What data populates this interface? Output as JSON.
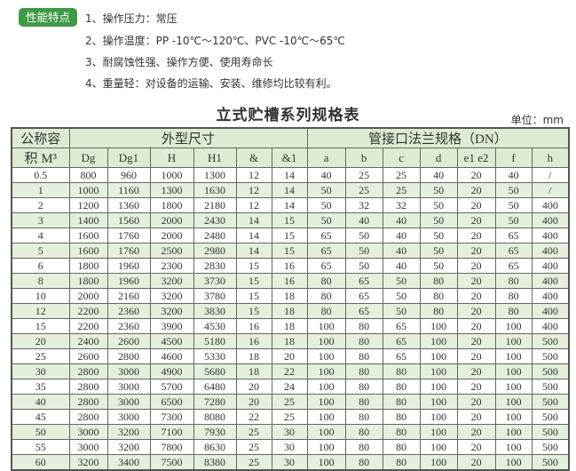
{
  "badge": "性能特点",
  "features": [
    "1、操作压力：常压",
    "2、操作温度：PP -10℃～120℃、PVC -10℃～65℃",
    "3、耐腐蚀性强、操作方便、使用寿命长",
    "4、重量轻：对设备的运输、安装、维修均比较有利。"
  ],
  "title": "立式贮槽系列规格表",
  "unit": "单位：mm",
  "table": {
    "col0_top": "公称容",
    "col0_bottom": "积 M³",
    "group1": "外型尺寸",
    "group2": "管接口法兰规格（DN）",
    "headers": [
      "Dg",
      "Dg1",
      "H",
      "H1",
      "&",
      "&1",
      "a",
      "b",
      "c",
      "d",
      "e1 e2",
      "f",
      "h"
    ],
    "rows": [
      [
        "0.5",
        "800",
        "960",
        "1000",
        "1300",
        "12",
        "14",
        "40",
        "25",
        "25",
        "40",
        "20",
        "40",
        "/"
      ],
      [
        "1",
        "1000",
        "1160",
        "1300",
        "1630",
        "12",
        "14",
        "50",
        "25",
        "25",
        "50",
        "20",
        "50",
        "/"
      ],
      [
        "2",
        "1200",
        "1360",
        "1800",
        "2180",
        "12",
        "14",
        "50",
        "32",
        "32",
        "50",
        "20",
        "50",
        "400"
      ],
      [
        "3",
        "1400",
        "1560",
        "2000",
        "2430",
        "14",
        "15",
        "50",
        "40",
        "40",
        "50",
        "20",
        "50",
        "400"
      ],
      [
        "4",
        "1600",
        "1760",
        "2000",
        "2480",
        "14",
        "15",
        "65",
        "50",
        "40",
        "50",
        "20",
        "65",
        "400"
      ],
      [
        "5",
        "1600",
        "1760",
        "2500",
        "2980",
        "14",
        "15",
        "65",
        "50",
        "40",
        "50",
        "20",
        "65",
        "400"
      ],
      [
        "6",
        "1800",
        "1960",
        "2300",
        "2830",
        "15",
        "16",
        "65",
        "50",
        "40",
        "50",
        "20",
        "65",
        "400"
      ],
      [
        "8",
        "1800",
        "1960",
        "3200",
        "3730",
        "15",
        "16",
        "80",
        "65",
        "50",
        "80",
        "20",
        "80",
        "400"
      ],
      [
        "10",
        "2000",
        "2160",
        "3200",
        "3780",
        "15",
        "18",
        "80",
        "65",
        "50",
        "80",
        "20",
        "80",
        "400"
      ],
      [
        "12",
        "2200",
        "2360",
        "3200",
        "3830",
        "15",
        "18",
        "80",
        "65",
        "50",
        "80",
        "20",
        "80",
        "400"
      ],
      [
        "15",
        "2200",
        "2360",
        "3900",
        "4530",
        "16",
        "18",
        "100",
        "80",
        "65",
        "100",
        "20",
        "100",
        "400"
      ],
      [
        "20",
        "2400",
        "2600",
        "4500",
        "5180",
        "16",
        "18",
        "100",
        "80",
        "65",
        "100",
        "20",
        "100",
        "500"
      ],
      [
        "25",
        "2600",
        "2800",
        "4600",
        "5330",
        "18",
        "20",
        "100",
        "80",
        "65",
        "100",
        "20",
        "100",
        "500"
      ],
      [
        "30",
        "2800",
        "3000",
        "4900",
        "5680",
        "18",
        "22",
        "100",
        "80",
        "80",
        "100",
        "20",
        "100",
        "500"
      ],
      [
        "35",
        "2800",
        "3000",
        "5700",
        "6480",
        "20",
        "24",
        "100",
        "80",
        "80",
        "100",
        "20",
        "100",
        "500"
      ],
      [
        "40",
        "2800",
        "3000",
        "6500",
        "7280",
        "20",
        "25",
        "100",
        "80",
        "80",
        "100",
        "20",
        "100",
        "500"
      ],
      [
        "45",
        "2800",
        "3000",
        "7300",
        "8080",
        "22",
        "25",
        "100",
        "80",
        "80",
        "100",
        "20",
        "100",
        "500"
      ],
      [
        "50",
        "3000",
        "3200",
        "7100",
        "7930",
        "25",
        "30",
        "100",
        "80",
        "80",
        "100",
        "20",
        "100",
        "500"
      ],
      [
        "55",
        "3000",
        "3200",
        "7800",
        "8630",
        "25",
        "30",
        "100",
        "80",
        "80",
        "100",
        "20",
        "100",
        "500"
      ],
      [
        "60",
        "3200",
        "3400",
        "7500",
        "8380",
        "25",
        "30",
        "100",
        "80",
        "80",
        "100",
        "20",
        "100",
        "500"
      ]
    ]
  },
  "colors": {
    "badge": "#3f9a47",
    "row_alt": "#e4f0dc",
    "header": "#dcecd3"
  }
}
